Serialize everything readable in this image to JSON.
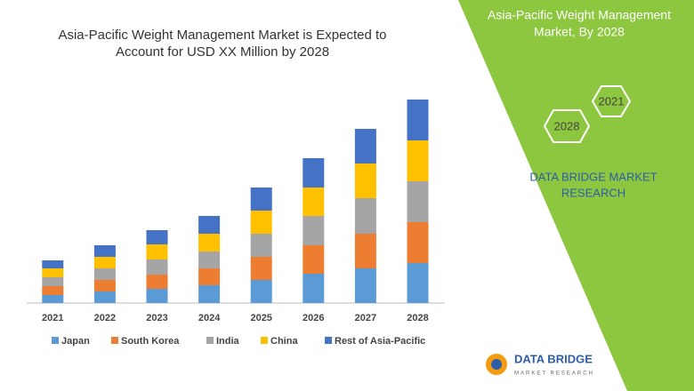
{
  "chart_data": {
    "type": "stacked_bar",
    "title": [
      "Asia-Pacific Weight Management Market is Expected to",
      "Account for USD XX Million by 2028"
    ],
    "categories": [
      "2021",
      "2022",
      "2023",
      "2024",
      "2025",
      "2026",
      "2027",
      "2028"
    ],
    "series": [
      {
        "name": "Japan",
        "color": "#5b9bd5",
        "values": [
          9,
          13,
          16,
          20,
          26,
          33,
          39,
          45
        ]
      },
      {
        "name": "South Korea",
        "color": "#ed7d31",
        "values": [
          10,
          13,
          16,
          19,
          26,
          32,
          39,
          46
        ]
      },
      {
        "name": "India",
        "color": "#a5a5a5",
        "values": [
          10,
          13,
          17,
          19,
          26,
          33,
          40,
          46
        ]
      },
      {
        "name": "China",
        "color": "#ffc000",
        "values": [
          10,
          13,
          17,
          20,
          26,
          32,
          39,
          46
        ]
      },
      {
        "name": "Rest of Asia-Pacific",
        "color": "#4472c4",
        "values": [
          9,
          13,
          16,
          20,
          26,
          33,
          39,
          46
        ]
      }
    ]
  },
  "panel": {
    "title": [
      "Asia-Pacific Weight Management",
      "Market, By 2028"
    ],
    "hexagons": [
      "2021",
      "2028"
    ],
    "brand": [
      "DATA BRIDGE MARKET",
      "RESEARCH"
    ]
  },
  "logo": {
    "name": "DATA BRIDGE",
    "tagline": "MARKET RESEARCH"
  }
}
